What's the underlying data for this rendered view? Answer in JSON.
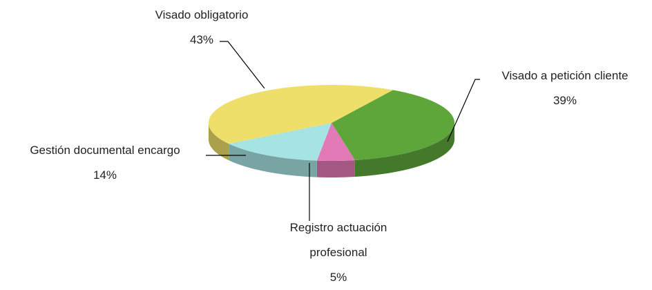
{
  "chart_data": {
    "type": "pie",
    "categories": [
      "Visado a petición cliente",
      "Registro actuación profesional",
      "Gestión documental encargo",
      "Visado obligatorio"
    ],
    "values": [
      39,
      5,
      14,
      43
    ],
    "value_labels": [
      "39%",
      "5%",
      "14%",
      "43%"
    ],
    "colors": [
      "#5fa63a",
      "#e27ab8",
      "#a6e4e4",
      "#eedf6a"
    ]
  }
}
